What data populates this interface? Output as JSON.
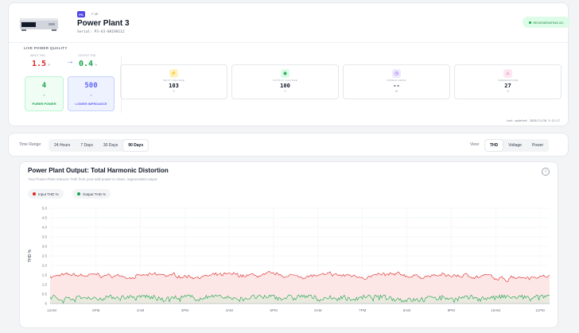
{
  "header": {
    "badge": "PS",
    "chip": "↗ 3P",
    "title": "Power Plant 3",
    "serial": "Serial: P3-A3-00190112",
    "status": "REGENERATING AC"
  },
  "quality": {
    "section_label": "LIVE POWER QUALITY",
    "input_label": "INPUT THD",
    "input_value": "1.5",
    "output_label": "OUTPUT THD",
    "output_value": "0.4",
    "unit": "%",
    "arrow": "→",
    "tile_green": {
      "value": "4",
      "mid": "×",
      "label": "PURER POWER"
    },
    "tile_blue": {
      "value": "500",
      "mid": "×",
      "label": "LOWER IMPEDANCE"
    }
  },
  "metrics": [
    {
      "label": "INPUT VOLTAGE",
      "value": "103",
      "unit": "V",
      "icon": "⚡",
      "bg": "#fef3c7",
      "fg": "#d97706"
    },
    {
      "label": "OUTPUT VOLTAGE",
      "value": "100",
      "unit": "V",
      "icon": "◉",
      "bg": "#dcfce7",
      "fg": "#16a34a"
    },
    {
      "label": "POWER DRAW",
      "value": "--",
      "unit": "W",
      "icon": "◷",
      "bg": "#ede9fe",
      "fg": "#7c3aed"
    },
    {
      "label": "TEMPERATURE",
      "value": "27",
      "unit": "°C",
      "icon": "♨",
      "bg": "#fce7f3",
      "fg": "#db2777"
    }
  ],
  "last_updated": "Last updated: 2026/12/18 3:12:17",
  "range_bar": {
    "label": "Time Range:",
    "ranges": [
      "24 Hours",
      "7 Days",
      "30 Days",
      "90 Days"
    ],
    "active_range": 3,
    "view_label": "View:",
    "views": [
      "THD",
      "Voltage",
      "Power"
    ],
    "active_view": 0
  },
  "chart": {
    "title": "Power Plant Output: Total Harmonic Distortion",
    "subtitle": "Your Power Plant reduces THD from your wall power to clean, regenerated output",
    "info": "i"
  },
  "chart_data": {
    "type": "line",
    "ylabel": "THD %",
    "ylim": [
      0,
      5
    ],
    "yticks": [
      "0",
      "0.5",
      "1.0",
      "1.5",
      "2.0",
      "2.5",
      "3.0",
      "3.5",
      "4.0",
      "4.5",
      "5.0"
    ],
    "xticks": [
      "12AM",
      "5PM",
      "2AM",
      "3PM",
      "4AM",
      "5PM",
      "6AM",
      "7PM",
      "8AM",
      "9PM",
      "10AM",
      "11PM"
    ],
    "grid": true,
    "legend_position": "top-left",
    "series": [
      {
        "name": "Input THD %",
        "color": "#dc2626",
        "fill": "#fde2e2",
        "mean": 1.45,
        "range": [
          1.2,
          1.7
        ]
      },
      {
        "name": "Output THD %",
        "color": "#16a34a",
        "fill": "#e5e9dc",
        "mean": 0.3,
        "range": [
          0.0,
          0.45
        ]
      }
    ]
  }
}
